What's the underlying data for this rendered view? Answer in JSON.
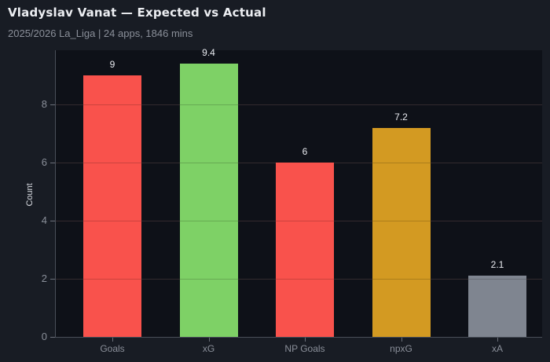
{
  "header": {
    "title": "Vladyslav Vanat — Expected vs Actual",
    "subtitle": "2025/2026 La_Liga | 24 apps, 1846 mins"
  },
  "chart_data": {
    "type": "bar",
    "title": "Vladyslav Vanat — Expected vs Actual",
    "subtitle": "2025/2026 La_Liga | 24 apps, 1846 mins",
    "xlabel": "",
    "ylabel": "Count",
    "categories": [
      "Goals",
      "xG",
      "NP Goals",
      "npxG",
      "xA"
    ],
    "values": [
      9,
      9.4,
      6,
      7.2,
      2.1
    ],
    "value_labels": [
      "9",
      "9.4",
      "6",
      "7.2",
      "2.1"
    ],
    "colors": [
      "#f9524c",
      "#7ed166",
      "#f9524c",
      "#d39a22",
      "#7f8590"
    ],
    "ylim": [
      0,
      9.87
    ],
    "yticks": [
      0,
      2,
      4,
      6,
      8
    ],
    "grid": true,
    "legend": null
  },
  "colors": {
    "background": "#181c24",
    "plot_background": "#0e1118"
  }
}
